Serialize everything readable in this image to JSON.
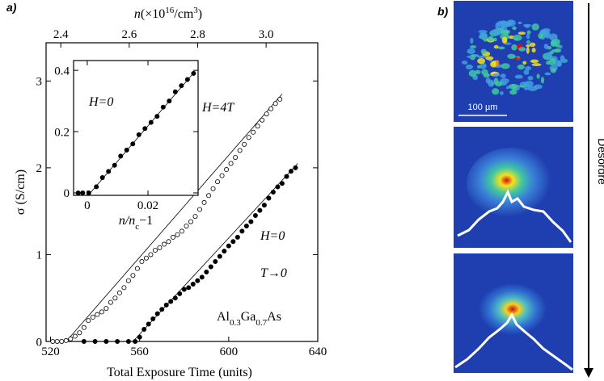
{
  "panel_a_label": "a)",
  "chart_data": [
    {
      "type": "scatter",
      "x_label": "Total Exposure Time (units)",
      "y_label": "σ (S/cm)",
      "x2_label": {
        "parts": [
          "n",
          "(×10",
          "16",
          "/cm",
          "3",
          ")"
        ]
      },
      "xlim": [
        518,
        640
      ],
      "xticks": [
        520,
        560,
        600,
        640
      ],
      "ylim": [
        0,
        3.44
      ],
      "yticks": [
        0,
        1,
        2,
        3
      ],
      "x2lim": [
        2.357,
        3.151
      ],
      "x2ticks": [
        2.4,
        2.6,
        2.8,
        {
          "value": 3.0,
          "label": "3.0"
        }
      ],
      "series": [
        {
          "name": "H=4T",
          "marker": "open",
          "color": "#000000",
          "x": [
            521,
            523,
            525,
            527,
            529,
            531,
            533,
            535,
            537,
            539,
            541,
            543,
            545,
            547,
            549,
            551,
            553,
            555,
            557,
            559,
            561,
            563,
            565,
            567,
            569,
            571,
            573,
            575,
            577,
            579,
            581,
            583,
            585,
            587,
            589,
            591,
            593,
            595,
            597,
            599,
            601,
            603,
            605,
            607,
            609,
            611,
            613,
            615,
            617,
            619,
            621,
            623
          ],
          "values": [
            0,
            0,
            0,
            0.01,
            0.03,
            0.06,
            0.1,
            0.16,
            0.24,
            0.28,
            0.31,
            0.34,
            0.38,
            0.45,
            0.5,
            0.56,
            0.62,
            0.7,
            0.76,
            0.84,
            0.92,
            0.96,
            1.0,
            1.05,
            1.08,
            1.12,
            1.15,
            1.2,
            1.23,
            1.27,
            1.33,
            1.38,
            1.44,
            1.52,
            1.6,
            1.68,
            1.76,
            1.84,
            1.91,
            1.98,
            2.05,
            2.12,
            2.2,
            2.27,
            2.35,
            2.41,
            2.48,
            2.55,
            2.62,
            2.68,
            2.74,
            2.79
          ]
        },
        {
          "name": "H=0",
          "marker": "filled",
          "color": "#000000",
          "x": [
            535,
            540,
            545,
            550,
            555,
            558,
            560,
            562,
            564,
            566,
            568,
            570,
            572,
            574,
            576,
            578,
            580,
            582,
            584,
            586,
            588,
            590,
            592,
            594,
            596,
            598,
            600,
            602,
            604,
            606,
            608,
            610,
            612,
            614,
            616,
            618,
            620,
            622,
            624,
            626,
            628,
            630
          ],
          "values": [
            0,
            0,
            0,
            0,
            0,
            0,
            0.05,
            0.14,
            0.2,
            0.26,
            0.32,
            0.37,
            0.42,
            0.46,
            0.5,
            0.55,
            0.6,
            0.62,
            0.66,
            0.7,
            0.74,
            0.8,
            0.86,
            0.92,
            0.98,
            1.04,
            1.1,
            1.15,
            1.2,
            1.27,
            1.33,
            1.38,
            1.45,
            1.51,
            1.57,
            1.65,
            1.72,
            1.78,
            1.82,
            1.9,
            1.96,
            2.0
          ]
        }
      ],
      "fit_lines": [
        {
          "x": [
            527,
            624
          ],
          "y": [
            0,
            2.85
          ]
        },
        {
          "x": [
            557,
            631
          ],
          "y": [
            0,
            2.05
          ]
        }
      ],
      "annotations": [
        "T→0"
      ],
      "composition": [
        "Al",
        "0.3",
        "Ga",
        "0.7",
        "As"
      ]
    },
    {
      "type": "scatter",
      "x_label": {
        "parts": [
          "n/n",
          "c",
          "−1"
        ]
      },
      "xlim": [
        -0.0045,
        0.0365
      ],
      "xticks": [
        0,
        0.02
      ],
      "ylim": [
        -0.008,
        0.432
      ],
      "yticks": [
        0,
        0.2,
        0.4
      ],
      "series": [
        {
          "name": "H=0",
          "marker": "filled",
          "color": "#000000",
          "x": [
            -0.003,
            -0.0015,
            0.0005,
            0.003,
            0.005,
            0.007,
            0.009,
            0.011,
            0.013,
            0.015,
            0.017,
            0.019,
            0.021,
            0.023,
            0.025,
            0.027,
            0.029,
            0.031,
            0.033,
            0.035
          ],
          "values": [
            0,
            0,
            0,
            0.02,
            0.05,
            0.07,
            0.09,
            0.12,
            0.14,
            0.16,
            0.19,
            0.21,
            0.23,
            0.25,
            0.28,
            0.3,
            0.33,
            0.35,
            0.37,
            0.39
          ]
        }
      ],
      "fit_lines": [
        {
          "x": [
            0.001,
            0.0355
          ],
          "y": [
            0,
            0.397
          ]
        }
      ]
    }
  ],
  "panel_b": {
    "label": "b)",
    "scale_bar": "100 µm",
    "arrow_label": "Desordre"
  }
}
